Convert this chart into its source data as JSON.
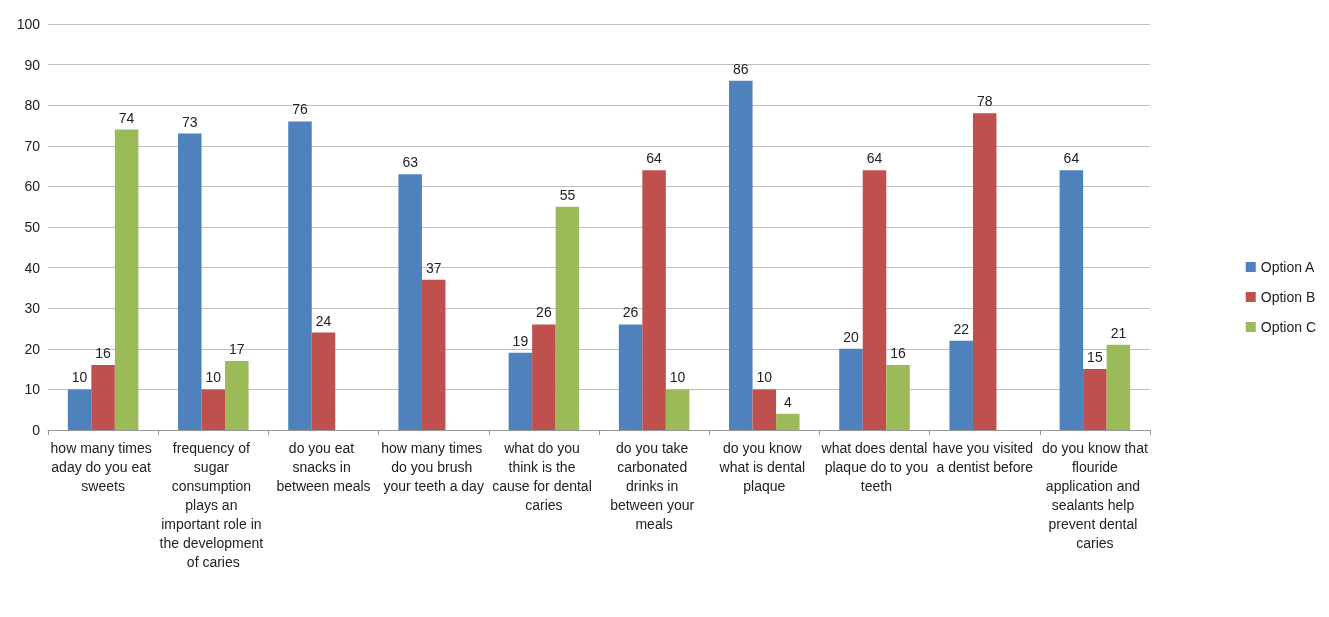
{
  "chart_data": {
    "type": "bar",
    "categories": [
      "how many times aday do you eat sweets",
      "frequency of sugar consumption plays an important role in the development of caries",
      "do you eat snacks in between meals",
      "how many times do you brush your teeth a day",
      "what do you think is the cause for dental caries",
      "do you take carbonated drinks in between your meals",
      "do you know what is dental plaque",
      "what does dental plaque do to you teeth",
      "have you visited a dentist before",
      "do you know that flouride application and sealants help prevent dental caries"
    ],
    "series": [
      {
        "name": "Option A",
        "color": "#4f81bd",
        "values": [
          10,
          73,
          76,
          63,
          19,
          26,
          86,
          20,
          22,
          64
        ]
      },
      {
        "name": "Option B",
        "color": "#c0504d",
        "values": [
          16,
          10,
          24,
          37,
          26,
          64,
          10,
          64,
          78,
          15
        ]
      },
      {
        "name": "Option C",
        "color": "#9bbb59",
        "values": [
          74,
          17,
          null,
          null,
          55,
          10,
          4,
          16,
          null,
          21
        ]
      }
    ],
    "ylim": [
      0,
      100
    ],
    "yticks": [
      0,
      10,
      20,
      30,
      40,
      50,
      60,
      70,
      80,
      90,
      100
    ],
    "grid": "y",
    "legend": "right",
    "data_labels": true
  }
}
